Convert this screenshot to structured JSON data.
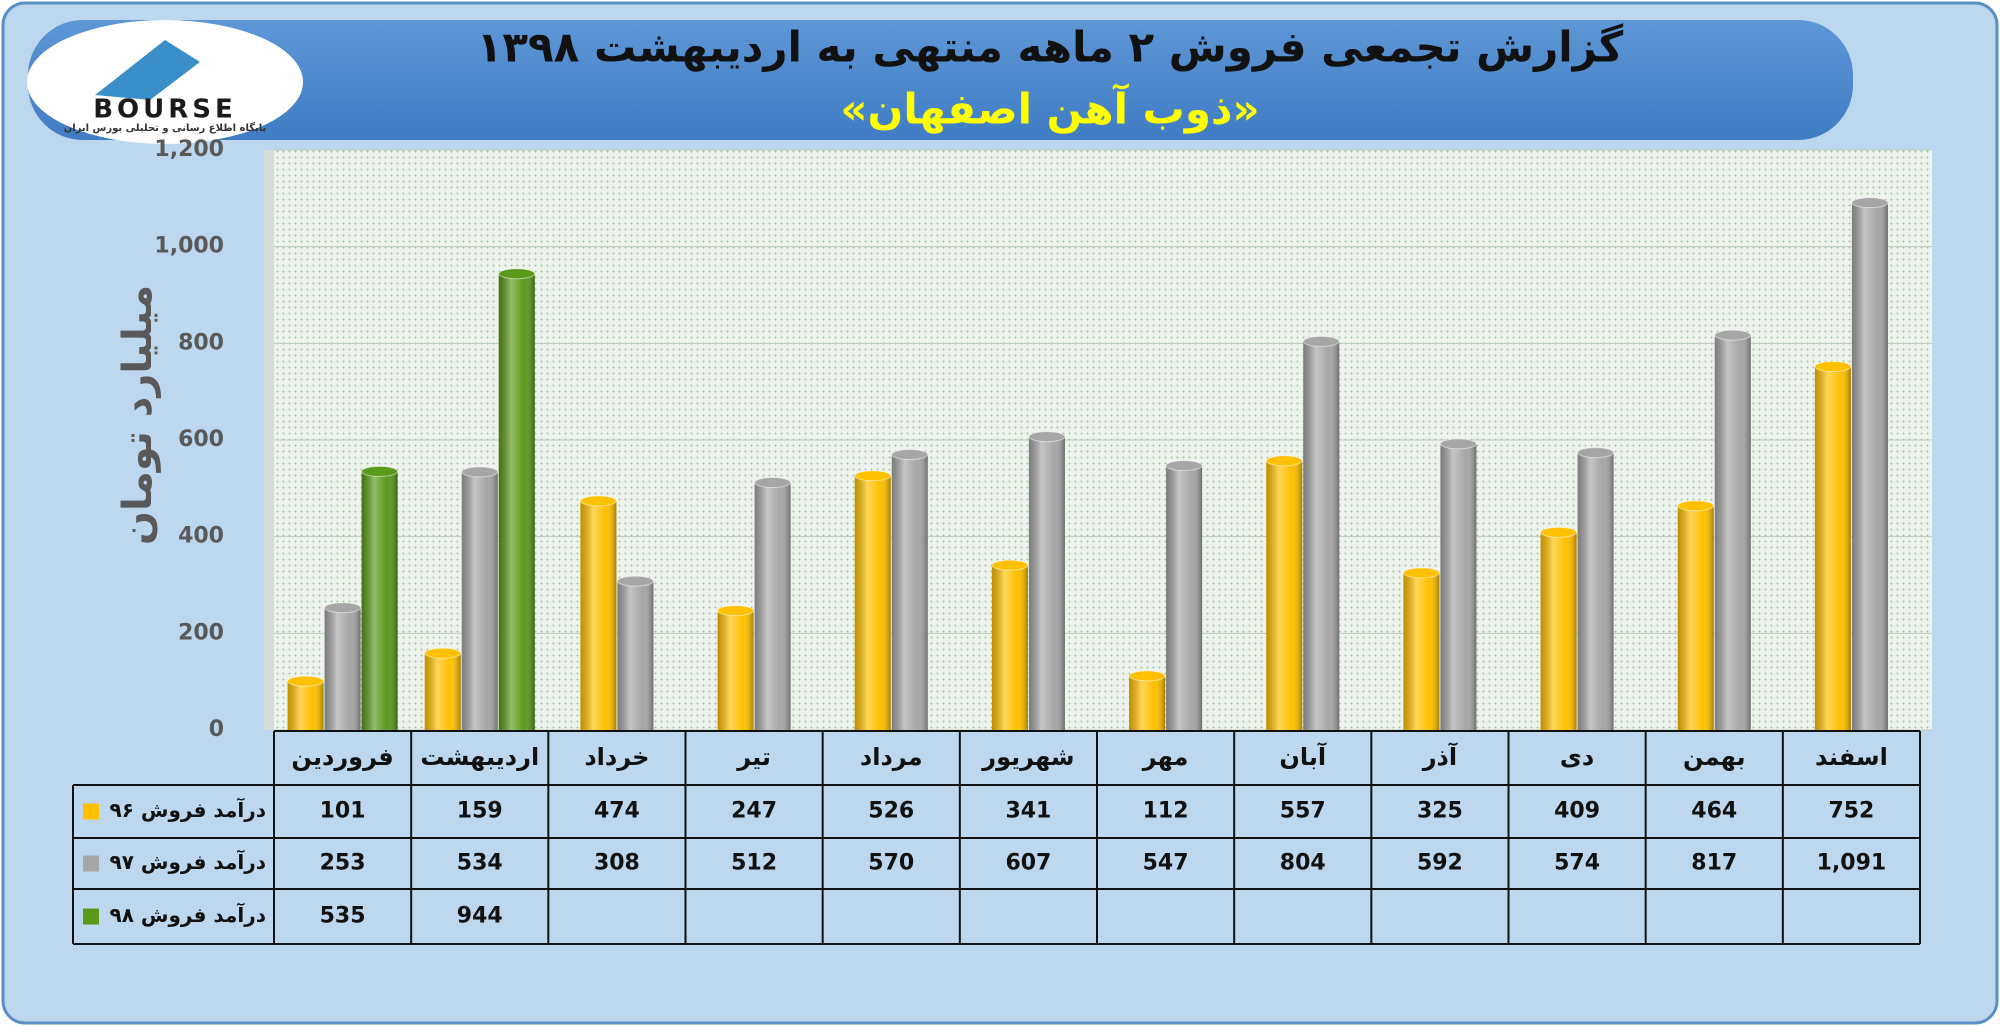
{
  "logo": {
    "name": "BOURSE",
    "tagline": "پایگاه اطلاع رسانی و تحلیلی بورس ایران"
  },
  "chart_data": {
    "type": "bar",
    "title": "گزارش تجمعی فروش ۲ ماهه منتهی به اردیبهشت ۱۳۹۸",
    "subtitle": "«ذوب آهن اصفهان»",
    "y_label": "میلیارد تومان",
    "categories": [
      "فروردین",
      "اردیبهشت",
      "خرداد",
      "تیر",
      "مرداد",
      "شهریور",
      "مهر",
      "آبان",
      "آذر",
      "دی",
      "بهمن",
      "اسفند"
    ],
    "series": [
      {
        "name": "درآمد فروش ۹۶",
        "color": "#ffc000",
        "values": [
          101,
          159,
          474,
          247,
          526,
          341,
          112,
          557,
          325,
          409,
          464,
          752
        ]
      },
      {
        "name": "درآمد فروش ۹۷",
        "color": "#a6a6a6",
        "values": [
          253,
          534,
          308,
          512,
          570,
          607,
          547,
          804,
          592,
          574,
          817,
          1091
        ],
        "value_labels": [
          "253",
          "534",
          "308",
          "512",
          "570",
          "607",
          "547",
          "804",
          "592",
          "574",
          "817",
          "1,091"
        ]
      },
      {
        "name": "درآمد فروش ۹۸",
        "color": "#5a9a1b",
        "values": [
          535,
          944,
          null,
          null,
          null,
          null,
          null,
          null,
          null,
          null,
          null,
          null
        ]
      }
    ],
    "ylim": [
      0,
      1200
    ],
    "yticks": [
      0,
      200,
      400,
      600,
      800,
      {
        "value": 1000,
        "label": "1,000"
      },
      {
        "value": 1200,
        "label": "1,200"
      }
    ],
    "grid": true,
    "legend": "table"
  }
}
